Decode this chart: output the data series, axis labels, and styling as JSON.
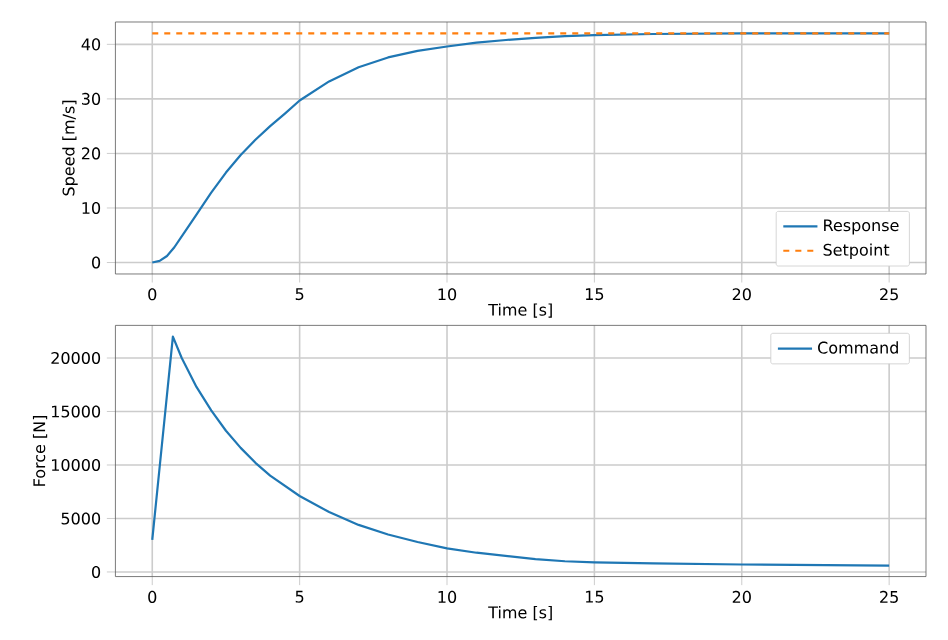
{
  "chart_data": [
    {
      "type": "line",
      "xlabel": "Time [s]",
      "ylabel": "Speed [m/s]",
      "xlim": [
        -1.25,
        26.25
      ],
      "ylim": [
        -2.1,
        44.1
      ],
      "xticks": [
        0,
        5,
        10,
        15,
        20,
        25
      ],
      "yticks": [
        0,
        10,
        20,
        30,
        40
      ],
      "grid": true,
      "legend": "bottom right",
      "series": [
        {
          "name": "Response",
          "color": "#1f77b4",
          "line_style": "solid",
          "x": [
            0,
            0.25,
            0.5,
            0.75,
            1,
            1.5,
            2,
            2.5,
            3,
            3.5,
            4,
            4.5,
            5,
            6,
            7,
            8,
            9,
            10,
            11,
            12,
            13,
            14,
            15,
            17,
            20,
            25
          ],
          "values": [
            0,
            0.3,
            1.2,
            2.8,
            4.8,
            8.8,
            12.8,
            16.5,
            19.7,
            22.5,
            25,
            27.3,
            29.7,
            33.2,
            35.8,
            37.6,
            38.8,
            39.6,
            40.3,
            40.8,
            41.2,
            41.5,
            41.7,
            41.9,
            42,
            42
          ]
        },
        {
          "name": "Setpoint",
          "color": "#ff7f0e",
          "line_style": "dashed",
          "x": [
            0,
            25
          ],
          "values": [
            42,
            42
          ]
        }
      ]
    },
    {
      "type": "line",
      "xlabel": "Time [s]",
      "ylabel": "Force [N]",
      "xlim": [
        -1.25,
        26.25
      ],
      "ylim": [
        -430,
        23050
      ],
      "xticks": [
        0,
        5,
        10,
        15,
        20,
        25
      ],
      "yticks": [
        0,
        5000,
        10000,
        15000,
        20000
      ],
      "grid": true,
      "legend": "top right",
      "series": [
        {
          "name": "Command",
          "color": "#1f77b4",
          "line_style": "solid",
          "x": [
            0,
            0.7,
            1,
            1.5,
            2,
            2.5,
            3,
            3.5,
            4,
            5,
            6,
            7,
            8,
            9,
            10,
            11,
            12,
            13,
            14,
            15,
            17,
            20,
            25
          ],
          "values": [
            3000,
            22000,
            20000,
            17300,
            15100,
            13200,
            11600,
            10200,
            9000,
            7100,
            5600,
            4400,
            3500,
            2800,
            2200,
            1800,
            1500,
            1200,
            1000,
            900,
            800,
            700,
            600
          ]
        }
      ]
    }
  ]
}
